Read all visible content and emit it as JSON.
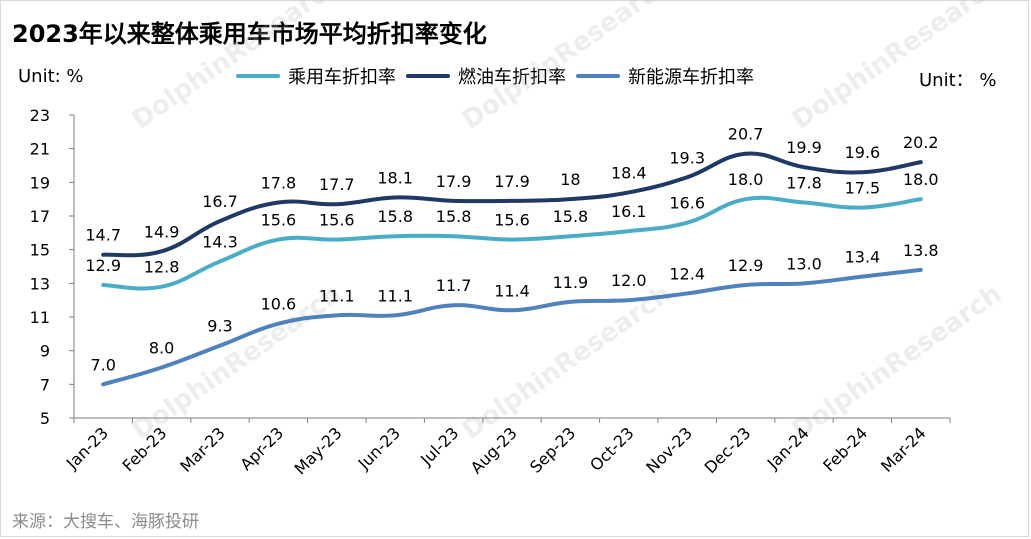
{
  "title": "2023年以来整体乘用车市场平均折扣率变化",
  "unit_left": "Unit: %",
  "unit_right": "Unit： %",
  "source": "来源：大搜车、海豚投研",
  "watermark": "DolphinResearch",
  "colors": {
    "passenger": "#4BACC6",
    "fuel": "#1F3864",
    "nev": "#4F81BD",
    "axis": "#7f7f7f"
  },
  "chart_data": {
    "type": "line",
    "categories": [
      "Jan-23",
      "Feb-23",
      "Mar-23",
      "Apr-23",
      "May-23",
      "Jun-23",
      "Jul-23",
      "Aug-23",
      "Sep-23",
      "Oct-23",
      "Nov-23",
      "Dec-23",
      "Jan-24",
      "Feb-24",
      "Mar-24"
    ],
    "ylim": [
      5,
      23
    ],
    "yticks": [
      "5",
      "7",
      "9",
      "11",
      "13",
      "15",
      "17",
      "19",
      "21",
      "23"
    ],
    "grid": false,
    "legend_position": "top-center",
    "series": [
      {
        "name": "乘用车折扣率",
        "color": "#4BACC6",
        "values": [
          12.9,
          12.8,
          14.3,
          15.6,
          15.6,
          15.8,
          15.8,
          15.6,
          15.8,
          16.1,
          16.6,
          18.0,
          17.8,
          17.5,
          18.0
        ],
        "labels": [
          "12.9",
          "12.8",
          "14.3",
          "15.6",
          "15.6",
          "15.8",
          "15.8",
          "15.6",
          "15.8",
          "16.1",
          "16.6",
          "18.0",
          "17.8",
          "17.5",
          "18.0"
        ]
      },
      {
        "name": "燃油车折扣率",
        "color": "#1F3864",
        "values": [
          14.7,
          14.9,
          16.7,
          17.8,
          17.7,
          18.1,
          17.9,
          17.9,
          18.0,
          18.4,
          19.3,
          20.7,
          19.9,
          19.6,
          20.2
        ],
        "labels": [
          "14.7",
          "14.9",
          "16.7",
          "17.8",
          "17.7",
          "18.1",
          "17.9",
          "17.9",
          "18",
          "18.4",
          "19.3",
          "20.7",
          "19.9",
          "19.6",
          "20.2"
        ]
      },
      {
        "name": "新能源车折扣率",
        "color": "#4F81BD",
        "values": [
          7.0,
          8.0,
          9.3,
          10.6,
          11.1,
          11.1,
          11.7,
          11.4,
          11.9,
          12.0,
          12.4,
          12.9,
          13.0,
          13.4,
          13.8
        ],
        "labels": [
          "7.0",
          "8.0",
          "9.3",
          "10.6",
          "11.1",
          "11.1",
          "11.7",
          "11.4",
          "11.9",
          "12.0",
          "12.4",
          "12.9",
          "13.0",
          "13.4",
          "13.8"
        ]
      }
    ]
  }
}
